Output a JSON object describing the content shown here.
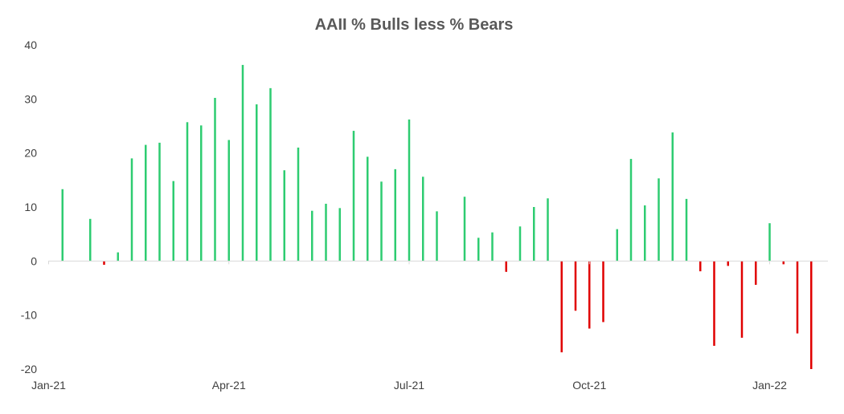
{
  "chart_data": {
    "type": "bar",
    "title": "AAII % Bulls less % Bears",
    "xlabel": "",
    "ylabel": "",
    "ylim": [
      -20,
      40
    ],
    "y_ticks": [
      "40",
      "30",
      "20",
      "10",
      "0",
      "-10",
      "-20"
    ],
    "x_ticks": [
      {
        "label": "Jan-21",
        "week": 0
      },
      {
        "label": "Apr-21",
        "week": 13
      },
      {
        "label": "Jul-21",
        "week": 26
      },
      {
        "label": "Oct-21",
        "week": 39
      },
      {
        "label": "Jan-22",
        "week": 52
      }
    ],
    "colors": {
      "positive": "#2ecc71",
      "negative": "#e00000",
      "axis": "#d9d9d9",
      "title": "#595959"
    },
    "grid": false,
    "legend": "none",
    "values": [
      null,
      13.3,
      null,
      7.8,
      -0.7,
      1.6,
      19.0,
      21.5,
      21.9,
      14.8,
      25.7,
      25.1,
      30.2,
      22.4,
      36.3,
      29.0,
      32.0,
      16.8,
      21.0,
      9.3,
      10.6,
      9.8,
      24.1,
      19.3,
      14.7,
      17.0,
      26.2,
      15.6,
      9.2,
      null,
      11.9,
      4.3,
      5.3,
      -2.0,
      6.4,
      10.0,
      11.6,
      -16.9,
      -9.2,
      -12.5,
      -11.3,
      5.9,
      18.9,
      10.3,
      15.3,
      23.8,
      11.5,
      -1.9,
      -15.7,
      -0.9,
      -14.2,
      -4.4,
      7.0,
      -0.6,
      -13.4,
      -20.0
    ]
  }
}
